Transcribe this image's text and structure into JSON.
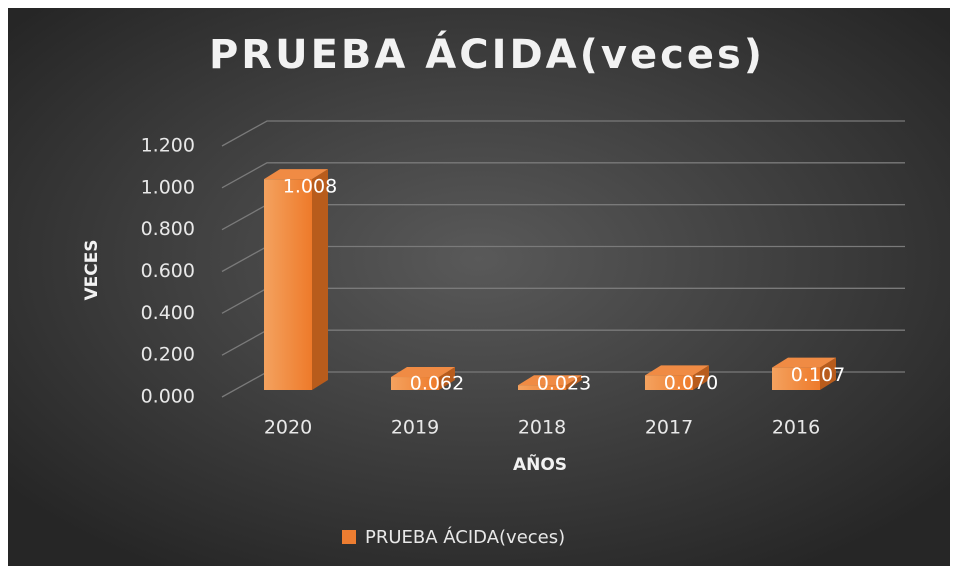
{
  "chart_data": {
    "type": "bar3d",
    "title": "PRUEBA ÁCIDA(veces)",
    "x_label": "AÑOS",
    "y_label": "VECES",
    "categories": [
      "2020",
      "2019",
      "2018",
      "2017",
      "2016"
    ],
    "series": [
      {
        "name": "PRUEBA ÁCIDA(veces)",
        "color": "#ed7d31",
        "values": [
          1.008,
          0.062,
          0.023,
          0.07,
          0.107
        ],
        "value_labels": [
          "1.008",
          "0.062",
          "0.023",
          "0.070",
          "0.107"
        ]
      }
    ],
    "ylim": [
      0,
      1.2
    ],
    "yticks": [
      {
        "value": 0,
        "label": "0.000"
      },
      {
        "value": 0.2,
        "label": "0.200"
      },
      {
        "value": 0.4,
        "label": "0.400"
      },
      {
        "value": 0.6,
        "label": "0.600"
      },
      {
        "value": 0.8,
        "label": "0.800"
      },
      {
        "value": 1.0,
        "label": "1.000"
      },
      {
        "value": 1.2,
        "label": "1.200"
      }
    ],
    "grid": true,
    "legend": "bottom"
  }
}
